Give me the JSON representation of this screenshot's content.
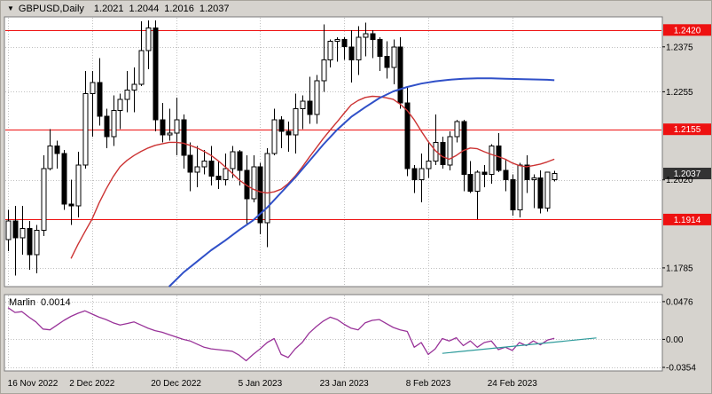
{
  "window": {
    "dropdown_glyph": "▼",
    "symbol_label": "GBPUSD,Daily"
  },
  "indicator_panel": {
    "name": "Marlin",
    "value": "0.0014"
  },
  "colors": {
    "frame_bg": "#d6d3ce",
    "plot_bg": "#ffffff",
    "pane_border": "#7a7a7a",
    "grid": "#c0c0c0",
    "candle_outline": "#000000",
    "candle_bull": "#ffffff",
    "candle_bear": "#000000",
    "ma_red": "#cc3333",
    "ma_blue": "#3050c8",
    "level_red": "#ee1111",
    "level_label_bg": "#ee1111",
    "level_label_text": "#ffffff",
    "current_price_bg": "#333333",
    "current_price_text": "#ffffff",
    "marlin_line": "#993399",
    "trend_line": "#2e9b9b",
    "text": "#000000"
  },
  "chart_data": {
    "type": "candlestick",
    "symbol": "GBPUSD",
    "timeframe": "Daily",
    "current_ohlc": {
      "open": "1.2021",
      "high": "1.2044",
      "low": "1.2016",
      "close": "1.2037"
    },
    "price_axis": {
      "min": 1.1735,
      "max": 1.2455,
      "ticks": [
        {
          "value": 1.2375,
          "label": "1.2375"
        },
        {
          "value": 1.2255,
          "label": "1.2255"
        },
        {
          "value": 1.202,
          "label": "1.2020"
        },
        {
          "value": 1.1785,
          "label": "1.1785"
        }
      ]
    },
    "levels": [
      {
        "value": 1.242,
        "label": "1.2420"
      },
      {
        "value": 1.2155,
        "label": "1.2155"
      },
      {
        "value": 1.1914,
        "label": "1.1914"
      }
    ],
    "current_price": {
      "value": 1.2037,
      "label": "1.2037"
    },
    "time_axis_labels": [
      {
        "index": 0,
        "label": "16 Nov 2022"
      },
      {
        "index": 12,
        "label": "2 Dec 2022"
      },
      {
        "index": 24,
        "label": "20 Dec 2022"
      },
      {
        "index": 36,
        "label": "5 Jan 2023"
      },
      {
        "index": 48,
        "label": "23 Jan 2023"
      },
      {
        "index": 60,
        "label": "8 Feb 2023"
      },
      {
        "index": 72,
        "label": "24 Feb 2023"
      }
    ],
    "candles": [
      [
        1.186,
        1.194,
        1.183,
        1.191
      ],
      [
        1.191,
        1.195,
        1.1765,
        1.1865
      ],
      [
        1.1865,
        1.195,
        1.182,
        1.189
      ],
      [
        1.189,
        1.191,
        1.178,
        1.182
      ],
      [
        1.182,
        1.19,
        1.177,
        1.1885
      ],
      [
        1.1885,
        1.2085,
        1.187,
        1.205
      ],
      [
        1.205,
        1.2155,
        1.2045,
        1.211
      ],
      [
        1.211,
        1.2125,
        1.205,
        1.209
      ],
      [
        1.209,
        1.21,
        1.194,
        1.1955
      ],
      [
        1.1955,
        1.202,
        1.19,
        1.195
      ],
      [
        1.195,
        1.2095,
        1.192,
        1.206
      ],
      [
        1.206,
        1.231,
        1.205,
        1.225
      ],
      [
        1.225,
        1.231,
        1.2135,
        1.228
      ],
      [
        1.228,
        1.2345,
        1.2165,
        1.219
      ],
      [
        1.219,
        1.221,
        1.2105,
        1.2135
      ],
      [
        1.2135,
        1.2245,
        1.211,
        1.2205
      ],
      [
        1.2205,
        1.225,
        1.2155,
        1.2235
      ],
      [
        1.2235,
        1.231,
        1.22,
        1.226
      ],
      [
        1.226,
        1.232,
        1.22,
        1.2275
      ],
      [
        1.2275,
        1.2443,
        1.227,
        1.2365
      ],
      [
        1.2365,
        1.2445,
        1.2315,
        1.2425
      ],
      [
        1.2425,
        1.2445,
        1.215,
        1.218
      ],
      [
        1.218,
        1.2225,
        1.212,
        1.214
      ],
      [
        1.214,
        1.221,
        1.2125,
        1.2145
      ],
      [
        1.2145,
        1.224,
        1.2085,
        1.218
      ],
      [
        1.218,
        1.2195,
        1.205,
        1.2085
      ],
      [
        1.2085,
        1.212,
        1.199,
        1.204
      ],
      [
        1.204,
        1.211,
        1.2,
        1.2055
      ],
      [
        1.2055,
        1.21,
        1.2035,
        1.207
      ],
      [
        1.207,
        1.211,
        1.2005,
        1.203
      ],
      [
        1.203,
        1.207,
        1.1995,
        1.202
      ],
      [
        1.202,
        1.209,
        1.2005,
        1.205
      ],
      [
        1.205,
        1.211,
        1.2025,
        1.2095
      ],
      [
        1.2095,
        1.21,
        1.2005,
        1.2045
      ],
      [
        1.2045,
        1.2085,
        1.19,
        1.197
      ],
      [
        1.197,
        1.2085,
        1.196,
        1.2055
      ],
      [
        1.2055,
        1.2065,
        1.1875,
        1.1905
      ],
      [
        1.1905,
        1.2105,
        1.184,
        1.209
      ],
      [
        1.209,
        1.221,
        1.2085,
        1.218
      ],
      [
        1.218,
        1.219,
        1.2105,
        1.215
      ],
      [
        1.215,
        1.2175,
        1.2095,
        1.214
      ],
      [
        1.214,
        1.225,
        1.209,
        1.221
      ],
      [
        1.221,
        1.2245,
        1.2155,
        1.223
      ],
      [
        1.223,
        1.2295,
        1.217,
        1.2195
      ],
      [
        1.2195,
        1.23,
        1.217,
        1.2285
      ],
      [
        1.2285,
        1.2435,
        1.2255,
        1.234
      ],
      [
        1.234,
        1.2395,
        1.232,
        1.239
      ],
      [
        1.239,
        1.24,
        1.2335,
        1.2395
      ],
      [
        1.2395,
        1.24,
        1.234,
        1.2375
      ],
      [
        1.2375,
        1.242,
        1.228,
        1.234
      ],
      [
        1.234,
        1.243,
        1.23,
        1.24
      ],
      [
        1.24,
        1.244,
        1.235,
        1.241
      ],
      [
        1.241,
        1.242,
        1.2345,
        1.2395
      ],
      [
        1.2395,
        1.24,
        1.231,
        1.235
      ],
      [
        1.235,
        1.239,
        1.229,
        1.232
      ],
      [
        1.232,
        1.2395,
        1.2275,
        1.2375
      ],
      [
        1.2375,
        1.24,
        1.221,
        1.2225
      ],
      [
        1.2225,
        1.227,
        1.203,
        1.205
      ],
      [
        1.205,
        1.206,
        1.1985,
        1.202
      ],
      [
        1.202,
        1.209,
        1.196,
        1.205
      ],
      [
        1.205,
        1.212,
        1.2025,
        1.207
      ],
      [
        1.207,
        1.2195,
        1.206,
        1.212
      ],
      [
        1.212,
        1.2135,
        1.205,
        1.206
      ],
      [
        1.206,
        1.215,
        1.2045,
        1.2135
      ],
      [
        1.2135,
        1.218,
        1.212,
        1.2175
      ],
      [
        1.2175,
        1.218,
        1.199,
        1.2035
      ],
      [
        1.2035,
        1.207,
        1.1985,
        1.199
      ],
      [
        1.199,
        1.2045,
        1.1915,
        1.204
      ],
      [
        1.204,
        1.206,
        1.2,
        1.2035
      ],
      [
        1.2035,
        1.2115,
        1.201,
        1.211
      ],
      [
        1.211,
        1.2145,
        1.204,
        1.2045
      ],
      [
        1.2045,
        1.2075,
        1.199,
        1.202
      ],
      [
        1.202,
        1.2035,
        1.1925,
        1.194
      ],
      [
        1.194,
        1.2065,
        1.192,
        1.206
      ],
      [
        1.206,
        1.2085,
        1.1985,
        1.202
      ],
      [
        1.202,
        1.2035,
        1.1945,
        1.2025
      ],
      [
        1.2025,
        1.2045,
        1.193,
        1.1945
      ],
      [
        1.1945,
        1.204,
        1.1935,
        1.204
      ],
      [
        1.2021,
        1.2044,
        1.2016,
        1.2037
      ]
    ],
    "ma_red": [
      [
        9,
        1.181
      ],
      [
        10,
        1.1848
      ],
      [
        11,
        1.1882
      ],
      [
        12,
        1.1915
      ],
      [
        13,
        1.1958
      ],
      [
        14,
        1.1995
      ],
      [
        15,
        1.2028
      ],
      [
        16,
        1.2055
      ],
      [
        17,
        1.2072
      ],
      [
        18,
        1.2085
      ],
      [
        19,
        1.2096
      ],
      [
        20,
        1.2105
      ],
      [
        21,
        1.2112
      ],
      [
        22,
        1.2116
      ],
      [
        23,
        1.212
      ],
      [
        24,
        1.212
      ],
      [
        25,
        1.2118
      ],
      [
        26,
        1.2112
      ],
      [
        27,
        1.2105
      ],
      [
        28,
        1.2096
      ],
      [
        29,
        1.2085
      ],
      [
        30,
        1.2071
      ],
      [
        31,
        1.2055
      ],
      [
        32,
        1.2038
      ],
      [
        33,
        1.202
      ],
      [
        34,
        1.2006
      ],
      [
        35,
        1.1995
      ],
      [
        36,
        1.1988
      ],
      [
        37,
        1.1985
      ],
      [
        38,
        1.1988
      ],
      [
        39,
        1.1995
      ],
      [
        40,
        1.201
      ],
      [
        41,
        1.203
      ],
      [
        42,
        1.2054
      ],
      [
        43,
        1.208
      ],
      [
        44,
        1.2105
      ],
      [
        45,
        1.213
      ],
      [
        46,
        1.2153
      ],
      [
        47,
        1.2175
      ],
      [
        48,
        1.2198
      ],
      [
        49,
        1.222
      ],
      [
        50,
        1.2232
      ],
      [
        51,
        1.224
      ],
      [
        52,
        1.2243
      ],
      [
        53,
        1.2242
      ],
      [
        54,
        1.2239
      ],
      [
        55,
        1.2235
      ],
      [
        56,
        1.2222
      ],
      [
        57,
        1.2205
      ],
      [
        58,
        1.218
      ],
      [
        59,
        1.215
      ],
      [
        60,
        1.2122
      ],
      [
        61,
        1.2098
      ],
      [
        62,
        1.2082
      ],
      [
        63,
        1.2075
      ],
      [
        64,
        1.2085
      ],
      [
        65,
        1.2098
      ],
      [
        66,
        1.2105
      ],
      [
        67,
        1.2103
      ],
      [
        68,
        1.2095
      ],
      [
        69,
        1.2088
      ],
      [
        70,
        1.2082
      ],
      [
        71,
        1.2075
      ],
      [
        72,
        1.2065
      ],
      [
        73,
        1.2058
      ],
      [
        74,
        1.2055
      ],
      [
        75,
        1.2058
      ],
      [
        76,
        1.2062
      ],
      [
        77,
        1.2068
      ],
      [
        78,
        1.2075
      ]
    ],
    "ma_blue": [
      [
        23,
        1.1735
      ],
      [
        25,
        1.1772
      ],
      [
        27,
        1.1802
      ],
      [
        29,
        1.1832
      ],
      [
        31,
        1.1858
      ],
      [
        33,
        1.1886
      ],
      [
        35,
        1.1912
      ],
      [
        37,
        1.1946
      ],
      [
        39,
        1.1986
      ],
      [
        41,
        1.2026
      ],
      [
        43,
        1.207
      ],
      [
        45,
        1.2114
      ],
      [
        47,
        1.2154
      ],
      [
        49,
        1.2188
      ],
      [
        51,
        1.2214
      ],
      [
        53,
        1.2238
      ],
      [
        55,
        1.2256
      ],
      [
        57,
        1.2268
      ],
      [
        59,
        1.2277
      ],
      [
        61,
        1.2283
      ],
      [
        63,
        1.2287
      ],
      [
        65,
        1.229
      ],
      [
        67,
        1.2291
      ],
      [
        69,
        1.2291
      ],
      [
        71,
        1.229
      ],
      [
        73,
        1.2289
      ],
      [
        75,
        1.2288
      ],
      [
        77,
        1.2287
      ],
      [
        78,
        1.2286
      ]
    ],
    "indicator": {
      "name": "Marlin",
      "last_value": 0.0014,
      "axis": {
        "min": -0.0399,
        "max": 0.0565,
        "ticks": [
          {
            "value": 0.0476,
            "label": "0.0476"
          },
          {
            "value": 0,
            "label": "0.00"
          },
          {
            "value": -0.0354,
            "label": "-0.0354"
          }
        ]
      },
      "values": [
        0.04,
        0.034,
        0.035,
        0.028,
        0.022,
        0.013,
        0.012,
        0.018,
        0.024,
        0.029,
        0.033,
        0.036,
        0.032,
        0.028,
        0.025,
        0.021,
        0.018,
        0.02,
        0.022,
        0.018,
        0.014,
        0.011,
        0.009,
        0.006,
        0.003,
        0.0,
        -0.002,
        -0.006,
        -0.01,
        -0.012,
        -0.013,
        -0.014,
        -0.015,
        -0.02,
        -0.027,
        -0.019,
        -0.012,
        -0.004,
        0.001,
        -0.019,
        -0.023,
        -0.012,
        -0.004,
        0.008,
        0.016,
        0.023,
        0.028,
        0.025,
        0.019,
        0.014,
        0.012,
        0.021,
        0.024,
        0.025,
        0.02,
        0.015,
        0.012,
        0.01,
        -0.01,
        -0.004,
        -0.019,
        -0.012,
        0.001,
        -0.002,
        0.002,
        -0.008,
        -0.002,
        -0.01,
        -0.004,
        -0.002,
        -0.013,
        -0.01,
        -0.014,
        -0.004,
        -0.008,
        -0.002,
        -0.007,
        -0.001,
        0.0014
      ],
      "trendline": {
        "i1": 62,
        "v1": -0.0177,
        "i2": 84,
        "v2": 0.0018
      }
    }
  }
}
